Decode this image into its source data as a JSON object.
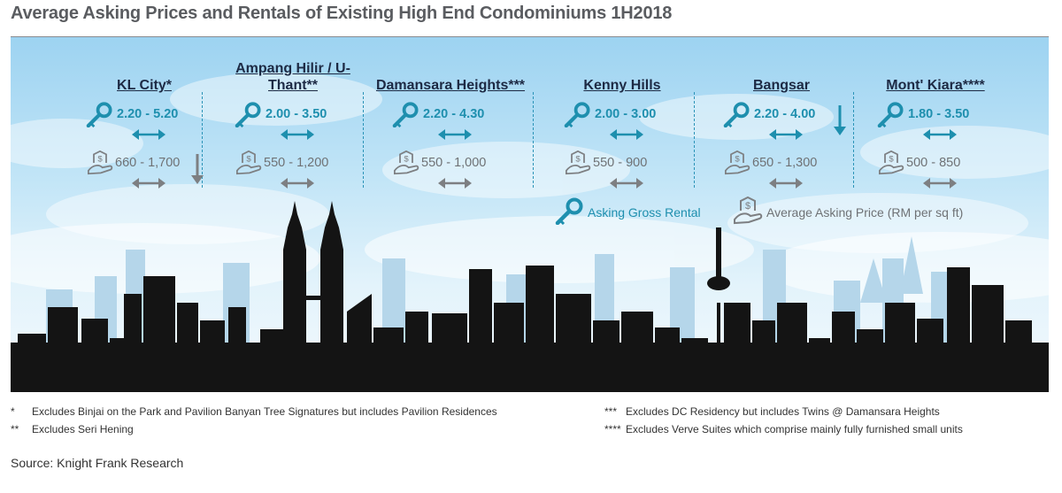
{
  "title": "Average Asking Prices and Rentals of Existing High End Condominiums 1H2018",
  "chart_data": {
    "type": "table",
    "units": {
      "rental": "Asking Gross Rental",
      "price": "Average Asking Price (RM per sq ft)"
    },
    "districts": [
      {
        "name": "KL City*",
        "rental": "2.20 - 5.20",
        "rental_low": 2.2,
        "rental_high": 5.2,
        "rental_trend": "stable",
        "price": "660 - 1,700",
        "price_low": 660,
        "price_high": 1700,
        "price_trend": "down"
      },
      {
        "name": "Ampang Hilir / U-Thant**",
        "rental": "2.00 - 3.50",
        "rental_low": 2.0,
        "rental_high": 3.5,
        "rental_trend": "stable",
        "price": "550 - 1,200",
        "price_low": 550,
        "price_high": 1200,
        "price_trend": "stable"
      },
      {
        "name": "Damansara Heights***",
        "rental": "2.20 - 4.30",
        "rental_low": 2.2,
        "rental_high": 4.3,
        "rental_trend": "stable",
        "price": "550 - 1,000",
        "price_low": 550,
        "price_high": 1000,
        "price_trend": "stable"
      },
      {
        "name": "Kenny Hills",
        "rental": "2.00 - 3.00",
        "rental_low": 2.0,
        "rental_high": 3.0,
        "rental_trend": "stable",
        "price": "550 - 900",
        "price_low": 550,
        "price_high": 900,
        "price_trend": "stable"
      },
      {
        "name": "Bangsar",
        "rental": "2.20 - 4.00",
        "rental_low": 2.2,
        "rental_high": 4.0,
        "rental_trend": "down",
        "price": "650 - 1,300",
        "price_low": 650,
        "price_high": 1300,
        "price_trend": "stable"
      },
      {
        "name": "Mont' Kiara****",
        "rental": "1.80 - 3.50",
        "rental_low": 1.8,
        "rental_high": 3.5,
        "rental_trend": "stable",
        "price": "500 - 850",
        "price_low": 500,
        "price_high": 850,
        "price_trend": "stable"
      }
    ],
    "legend": [
      "Asking Gross Rental",
      "Average Asking Price (RM per sq ft)"
    ]
  },
  "footnotes": [
    {
      "mark": "*",
      "text": "Excludes Binjai on the Park and Pavilion Banyan Tree Signatures but includes Pavilion Residences"
    },
    {
      "mark": "**",
      "text": "Excludes Seri Hening"
    },
    {
      "mark": "***",
      "text": "Excludes DC Residency but includes Twins @ Damansara Heights"
    },
    {
      "mark": "****",
      "text": "Excludes Verve Suites which comprise mainly fully furnished small units"
    }
  ],
  "source": "Source: Knight Frank Research",
  "colors": {
    "rental": "#1e8fae",
    "price": "#6f7275",
    "arrow_rental": "#1e8fae",
    "arrow_price": "#7d7f82",
    "skyline": "#141414",
    "title": "#5a5c60"
  },
  "icons": {
    "rental": "key-icon",
    "price": "house-dollar-icon",
    "trend_stable": "double-arrow-icon",
    "trend_down": "down-arrow-icon"
  }
}
